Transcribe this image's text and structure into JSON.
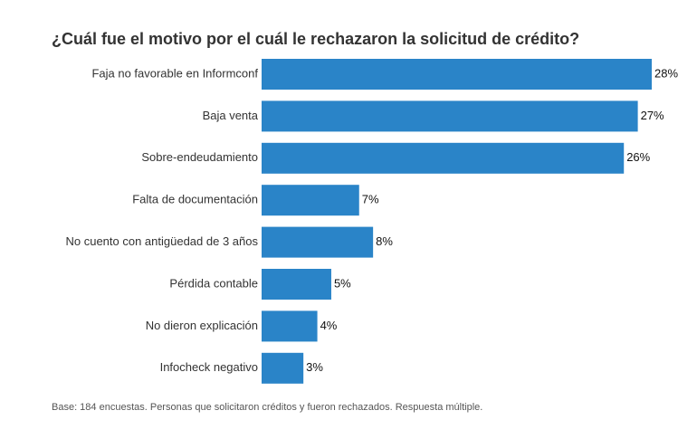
{
  "chart_data": {
    "type": "bar",
    "orientation": "horizontal",
    "title": "¿Cuál fue el motivo por el cuál le rechazaron la solicitud de crédito?",
    "categories": [
      "Faja no favorable en Informconf",
      "Baja venta",
      "Sobre-endeudamiento",
      "Falta de documentación",
      "No cuento con antigüedad de 3 años",
      "Pérdida contable",
      "No dieron explicación",
      "Infocheck negativo"
    ],
    "values": [
      28,
      27,
      26,
      7,
      8,
      5,
      4,
      3
    ],
    "value_labels": [
      "28%",
      "27%",
      "26%",
      "7%",
      "8%",
      "5%",
      "4%",
      "3%"
    ],
    "color": "#2a84c8",
    "footnote": "Base: 184 encuestas. Personas que solicitaron créditos y fueron rechazados. Respuesta múltiple."
  }
}
